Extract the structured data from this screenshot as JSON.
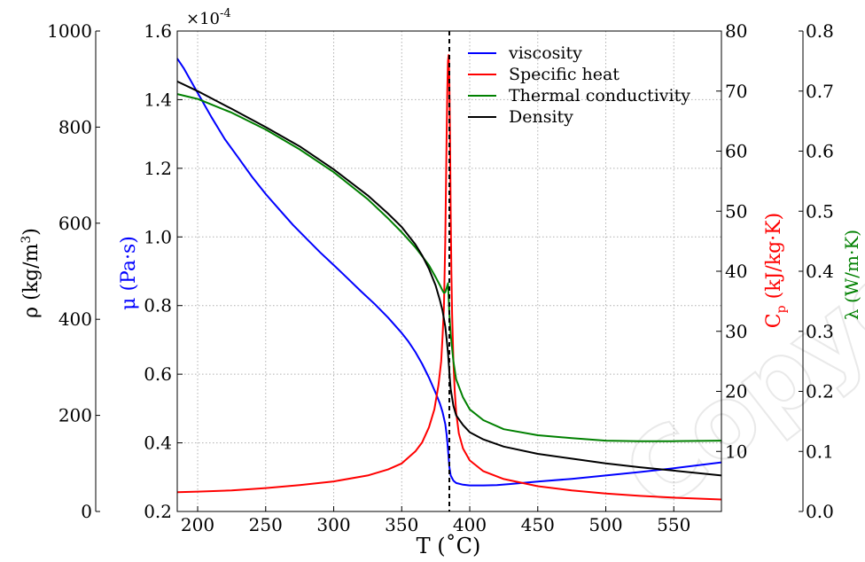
{
  "chart_data": {
    "type": "line",
    "xlabel": "T (˚C)",
    "xlim": [
      185,
      585
    ],
    "xticks": [
      200,
      250,
      300,
      350,
      400,
      450,
      500,
      550
    ],
    "critical_line_x": 385,
    "axes": {
      "mu": {
        "label_main": "μ (Pa·s)",
        "color": "#0000ff",
        "lim": [
          0.2,
          1.6
        ],
        "ticks": [
          "0.2",
          "0.4",
          "0.6",
          "0.8",
          "1.0",
          "1.2",
          "1.4",
          "1.6"
        ],
        "multiplier": "×10",
        "multiplier_exp": "-4"
      },
      "rho": {
        "label_main": "ρ (kg/m",
        "label_sup": "3",
        "label_close": ")",
        "color": "#000000",
        "lim": [
          0,
          1000
        ],
        "ticks": [
          "0",
          "200",
          "400",
          "600",
          "800",
          "1000"
        ]
      },
      "cp": {
        "label_main": "C",
        "label_sub": "p",
        "label_rest": " (kJ/kg·K)",
        "color": "#ff0000",
        "lim": [
          0,
          80
        ],
        "ticks": [
          "10",
          "20",
          "30",
          "40",
          "50",
          "60",
          "70",
          "80"
        ]
      },
      "lambda": {
        "label_main": "λ (W/m·K)",
        "color": "#008000",
        "lim": [
          0,
          0.8
        ],
        "ticks": [
          "0.0",
          "0.1",
          "0.2",
          "0.3",
          "0.4",
          "0.5",
          "0.6",
          "0.7",
          "0.8"
        ]
      }
    },
    "series": [
      {
        "name": "viscosity",
        "color": "#0000ff",
        "axis": "mu",
        "x": [
          185,
          190,
          200,
          210,
          220,
          230,
          240,
          250,
          260,
          270,
          280,
          290,
          300,
          310,
          320,
          330,
          340,
          350,
          355,
          360,
          365,
          370,
          375,
          378,
          380,
          382,
          383,
          384,
          385,
          386,
          388,
          390,
          395,
          400,
          410,
          420,
          430,
          450,
          475,
          500,
          525,
          550,
          585
        ],
        "y": [
          1.52,
          1.49,
          1.42,
          1.35,
          1.285,
          1.23,
          1.175,
          1.125,
          1.08,
          1.035,
          0.995,
          0.955,
          0.918,
          0.88,
          0.842,
          0.805,
          0.765,
          0.72,
          0.695,
          0.665,
          0.63,
          0.59,
          0.545,
          0.515,
          0.49,
          0.455,
          0.425,
          0.38,
          0.33,
          0.305,
          0.29,
          0.283,
          0.278,
          0.276,
          0.276,
          0.277,
          0.28,
          0.287,
          0.295,
          0.305,
          0.315,
          0.326,
          0.343
        ]
      },
      {
        "name": "Specific heat",
        "color": "#ff0000",
        "axis": "cp",
        "x": [
          185,
          200,
          225,
          250,
          275,
          300,
          325,
          340,
          350,
          360,
          365,
          370,
          374,
          377,
          379,
          380,
          381,
          382,
          383,
          383.5,
          384,
          384.5,
          385,
          385.5,
          386,
          386.5,
          387,
          388,
          389,
          390,
          392,
          395,
          400,
          410,
          425,
          450,
          475,
          500,
          525,
          550,
          585
        ],
        "y": [
          3.2,
          3.3,
          3.5,
          3.9,
          4.4,
          5.0,
          6.0,
          7.0,
          8.0,
          10.0,
          11.5,
          14.0,
          17.0,
          21.0,
          25.0,
          29.0,
          34.0,
          45.0,
          62.0,
          70.0,
          75.0,
          76.0,
          72.0,
          62.0,
          50.0,
          40.0,
          33.0,
          25.0,
          20.0,
          16.5,
          13.0,
          10.5,
          8.5,
          6.7,
          5.4,
          4.2,
          3.5,
          3.0,
          2.6,
          2.3,
          2.0
        ]
      },
      {
        "name": "Thermal conductivity",
        "color": "#008000",
        "axis": "lambda",
        "x": [
          185,
          200,
          225,
          250,
          275,
          300,
          325,
          340,
          350,
          360,
          370,
          375,
          378,
          380,
          381,
          382,
          383,
          384,
          385,
          386,
          388,
          390,
          395,
          400,
          410,
          425,
          450,
          475,
          500,
          525,
          550,
          585
        ],
        "y": [
          0.695,
          0.687,
          0.664,
          0.636,
          0.603,
          0.565,
          0.52,
          0.488,
          0.465,
          0.44,
          0.41,
          0.39,
          0.377,
          0.368,
          0.364,
          0.365,
          0.372,
          0.38,
          0.33,
          0.295,
          0.25,
          0.22,
          0.19,
          0.17,
          0.152,
          0.137,
          0.127,
          0.122,
          0.118,
          0.117,
          0.117,
          0.118
        ]
      },
      {
        "name": "Density",
        "color": "#000000",
        "axis": "rho",
        "x": [
          185,
          200,
          225,
          250,
          275,
          300,
          325,
          340,
          350,
          360,
          365,
          370,
          375,
          378,
          380,
          382,
          383,
          384,
          385,
          386,
          388,
          390,
          395,
          400,
          410,
          425,
          450,
          475,
          500,
          525,
          550,
          585
        ],
        "y": [
          895,
          875,
          838,
          800,
          760,
          712,
          658,
          620,
          592,
          556,
          533,
          505,
          470,
          440,
          418,
          385,
          360,
          330,
          290,
          255,
          220,
          200,
          180,
          165,
          150,
          135,
          120,
          110,
          100,
          92,
          85,
          75
        ]
      }
    ]
  }
}
